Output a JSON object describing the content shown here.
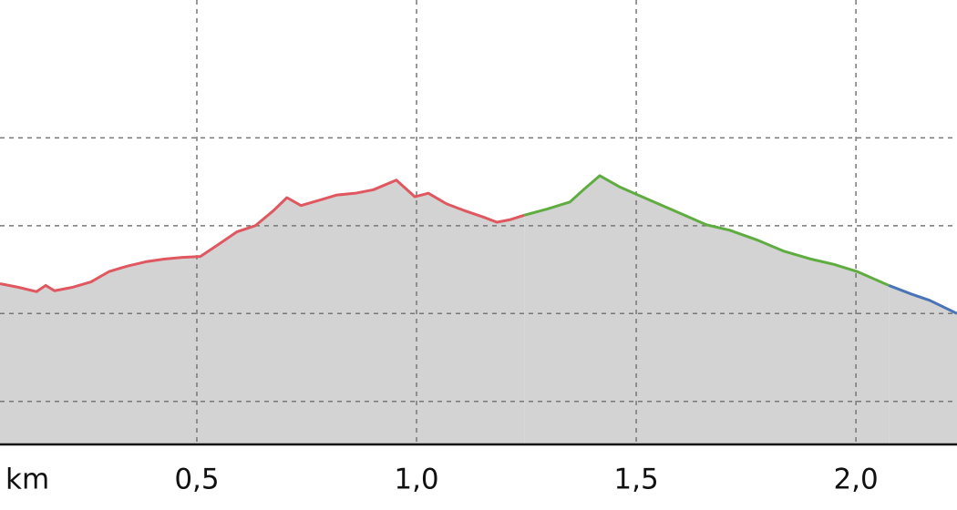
{
  "chart_data": {
    "type": "area-line",
    "x_label": "km",
    "xlim": [
      0.052,
      2.23
    ],
    "xticks": [
      {
        "value": 0.5,
        "label": "0,5"
      },
      {
        "value": 1.0,
        "label": "1,0"
      },
      {
        "value": 1.5,
        "label": "1,5"
      },
      {
        "value": 2.0,
        "label": "2,0"
      }
    ],
    "ylim": [
      0.51,
      5.57
    ],
    "ygrid_lines": [
      1,
      2,
      3,
      4
    ],
    "grid": true,
    "fill_color": "#d3d3d3",
    "series": [
      {
        "color": "#e0575f",
        "x": [
          0.052,
          0.093,
          0.135,
          0.156,
          0.176,
          0.218,
          0.259,
          0.301,
          0.342,
          0.384,
          0.425,
          0.467,
          0.508,
          0.55,
          0.591,
          0.633,
          0.674,
          0.705,
          0.737,
          0.778,
          0.819,
          0.861,
          0.902,
          0.954,
          0.996,
          1.027,
          1.068,
          1.11,
          1.151,
          1.183,
          1.214,
          1.245
        ],
        "values": [
          2.34,
          2.3,
          2.25,
          2.32,
          2.26,
          2.3,
          2.36,
          2.48,
          2.54,
          2.59,
          2.62,
          2.64,
          2.65,
          2.79,
          2.93,
          3.0,
          3.17,
          3.32,
          3.23,
          3.29,
          3.35,
          3.37,
          3.41,
          3.52,
          3.33,
          3.37,
          3.25,
          3.17,
          3.1,
          3.04,
          3.07,
          3.12
        ]
      },
      {
        "color": "#5fad41",
        "x": [
          1.245,
          1.297,
          1.349,
          1.38,
          1.417,
          1.463,
          1.504,
          1.587,
          1.66,
          1.712,
          1.774,
          1.836,
          1.898,
          1.95,
          2.002,
          2.075
        ],
        "values": [
          3.12,
          3.19,
          3.27,
          3.41,
          3.57,
          3.44,
          3.35,
          3.17,
          3.01,
          2.95,
          2.84,
          2.71,
          2.62,
          2.56,
          2.48,
          2.32
        ]
      },
      {
        "color": "#4a74b8",
        "x": [
          2.075,
          2.127,
          2.168,
          2.23
        ],
        "values": [
          2.32,
          2.22,
          2.15,
          2.0
        ]
      }
    ]
  }
}
